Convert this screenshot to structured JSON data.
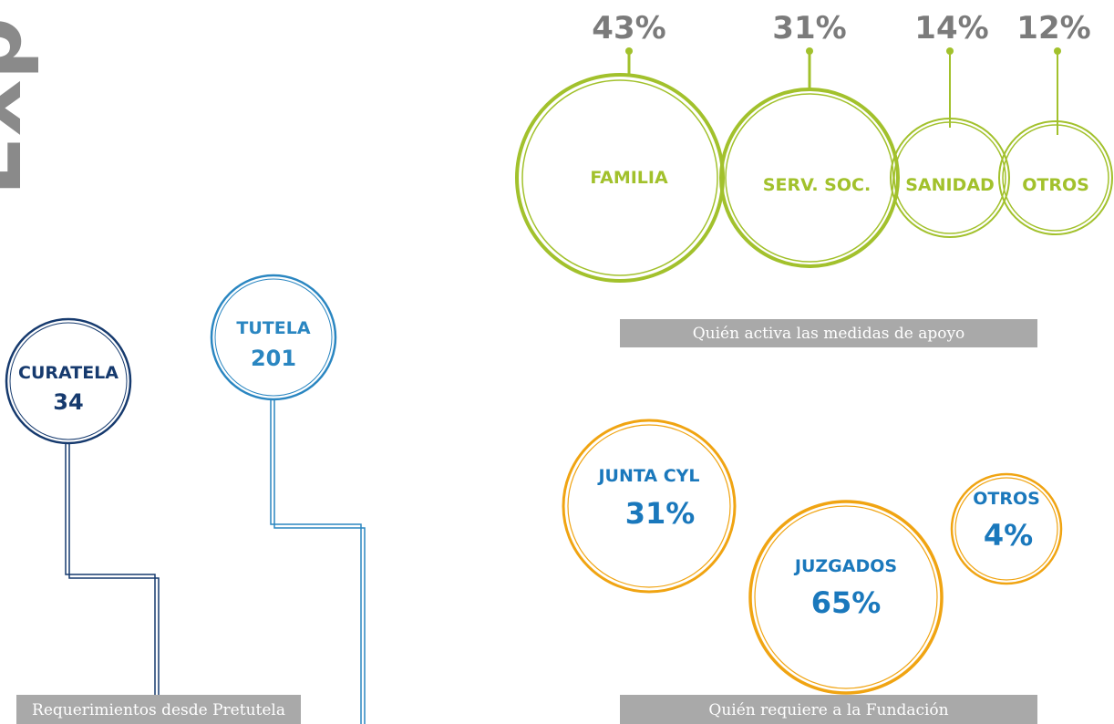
{
  "side_title": "Exp",
  "support_measures": {
    "items": [
      {
        "percent": "43%",
        "label": "FAMILIA"
      },
      {
        "percent": "31%",
        "label": "SERV. SOC."
      },
      {
        "percent": "14%",
        "label": "SANIDAD"
      },
      {
        "percent": "12%",
        "label": "OTROS"
      }
    ],
    "caption": "Quién activa las medidas de apoyo"
  },
  "foundation_requests": {
    "items": [
      {
        "label": "JUNTA CYL",
        "percent": "31%"
      },
      {
        "label": "JUZGADOS",
        "percent": "65%"
      },
      {
        "label": "OTROS",
        "percent": "4%"
      }
    ],
    "caption": "Quién requiere a la Fundación"
  },
  "pretutela": {
    "items": [
      {
        "label": "CURATELA",
        "count": "34"
      },
      {
        "label": "TUTELA",
        "count": "201"
      }
    ],
    "caption": "Requerimientos desde Pretutela"
  }
}
